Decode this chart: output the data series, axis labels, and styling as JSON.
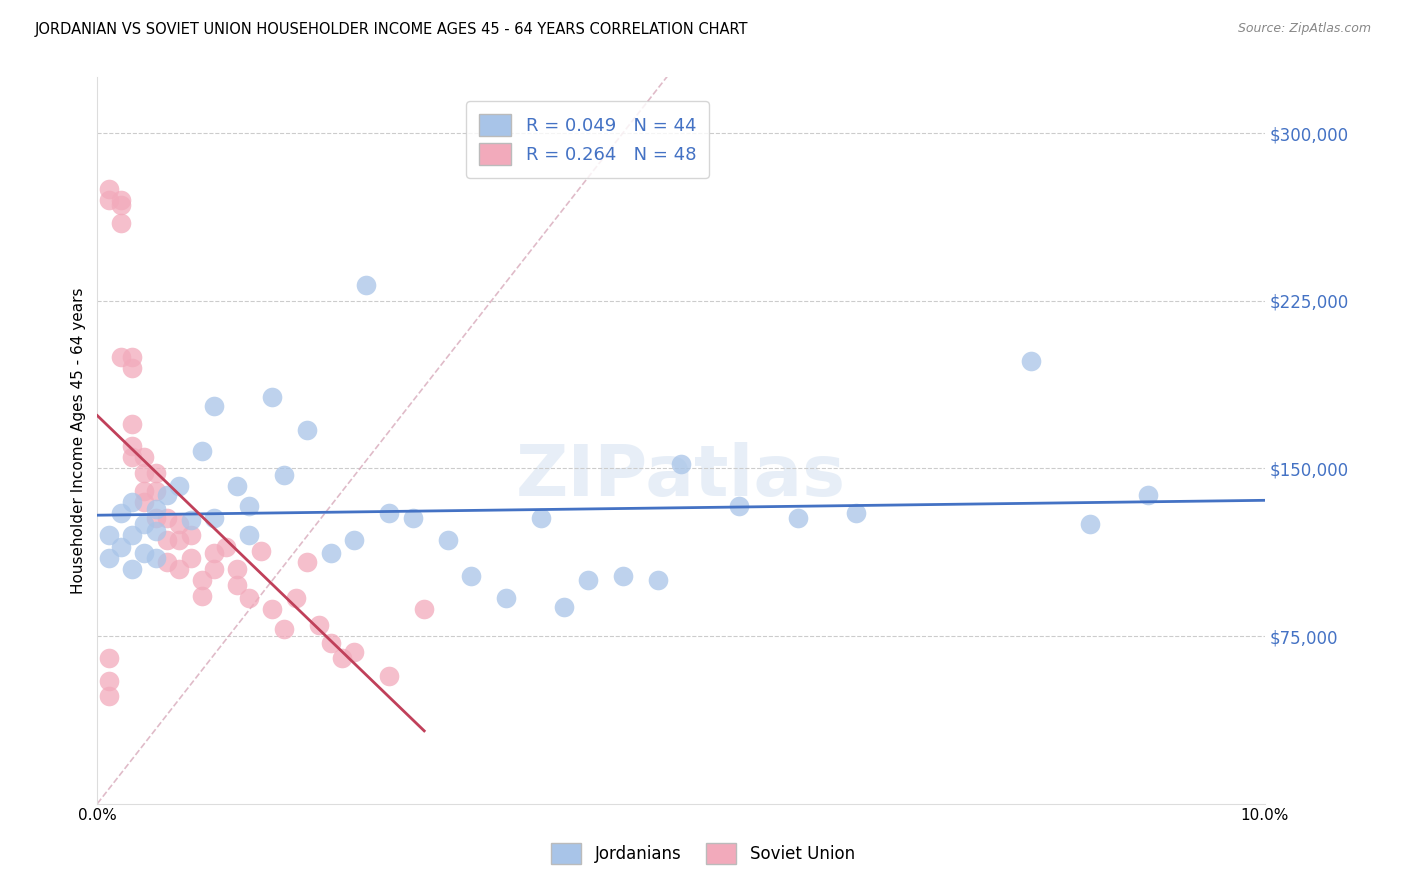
{
  "title": "JORDANIAN VS SOVIET UNION HOUSEHOLDER INCOME AGES 45 - 64 YEARS CORRELATION CHART",
  "source": "Source: ZipAtlas.com",
  "ylabel": "Householder Income Ages 45 - 64 years",
  "xlim": [
    0.0,
    0.1
  ],
  "ylim": [
    0,
    325000
  ],
  "xticks": [
    0.0,
    0.02,
    0.04,
    0.06,
    0.08,
    0.1
  ],
  "xticklabels": [
    "0.0%",
    "",
    "",
    "",
    "",
    "10.0%"
  ],
  "yticks_right": [
    75000,
    150000,
    225000,
    300000
  ],
  "ytick_labels_right": [
    "$75,000",
    "$150,000",
    "$225,000",
    "$300,000"
  ],
  "legend_r_jordan": "R = 0.049",
  "legend_n_jordan": "N = 44",
  "legend_r_soviet": "R = 0.264",
  "legend_n_soviet": "N = 48",
  "jordanian_color": "#a8c4e8",
  "soviet_color": "#f2aabb",
  "jordanian_line_color": "#4472c4",
  "soviet_line_color": "#c0405a",
  "diagonal_color": "#d8aabb",
  "jordanians_x": [
    0.001,
    0.001,
    0.002,
    0.002,
    0.003,
    0.003,
    0.003,
    0.004,
    0.004,
    0.005,
    0.005,
    0.005,
    0.006,
    0.007,
    0.008,
    0.009,
    0.01,
    0.01,
    0.012,
    0.013,
    0.013,
    0.015,
    0.016,
    0.018,
    0.02,
    0.022,
    0.023,
    0.025,
    0.027,
    0.03,
    0.032,
    0.035,
    0.038,
    0.04,
    0.042,
    0.045,
    0.048,
    0.05,
    0.055,
    0.06,
    0.065,
    0.08,
    0.085,
    0.09
  ],
  "jordanians_y": [
    120000,
    110000,
    130000,
    115000,
    135000,
    120000,
    105000,
    125000,
    112000,
    132000,
    122000,
    110000,
    138000,
    142000,
    127000,
    158000,
    178000,
    128000,
    142000,
    133000,
    120000,
    182000,
    147000,
    167000,
    112000,
    118000,
    232000,
    130000,
    128000,
    118000,
    102000,
    92000,
    128000,
    88000,
    100000,
    102000,
    100000,
    152000,
    133000,
    128000,
    130000,
    198000,
    125000,
    138000
  ],
  "soviet_x": [
    0.001,
    0.001,
    0.001,
    0.001,
    0.001,
    0.002,
    0.002,
    0.002,
    0.002,
    0.003,
    0.003,
    0.003,
    0.003,
    0.003,
    0.004,
    0.004,
    0.004,
    0.004,
    0.005,
    0.005,
    0.005,
    0.006,
    0.006,
    0.006,
    0.007,
    0.007,
    0.007,
    0.008,
    0.008,
    0.009,
    0.009,
    0.01,
    0.01,
    0.011,
    0.012,
    0.012,
    0.013,
    0.014,
    0.015,
    0.016,
    0.017,
    0.018,
    0.019,
    0.02,
    0.021,
    0.022,
    0.025,
    0.028
  ],
  "soviet_y": [
    55000,
    65000,
    48000,
    275000,
    270000,
    270000,
    268000,
    260000,
    200000,
    200000,
    195000,
    170000,
    160000,
    155000,
    155000,
    148000,
    140000,
    135000,
    148000,
    140000,
    128000,
    128000,
    118000,
    108000,
    125000,
    118000,
    105000,
    120000,
    110000,
    100000,
    93000,
    112000,
    105000,
    115000,
    105000,
    98000,
    92000,
    113000,
    87000,
    78000,
    92000,
    108000,
    80000,
    72000,
    65000,
    68000,
    57000,
    87000
  ]
}
